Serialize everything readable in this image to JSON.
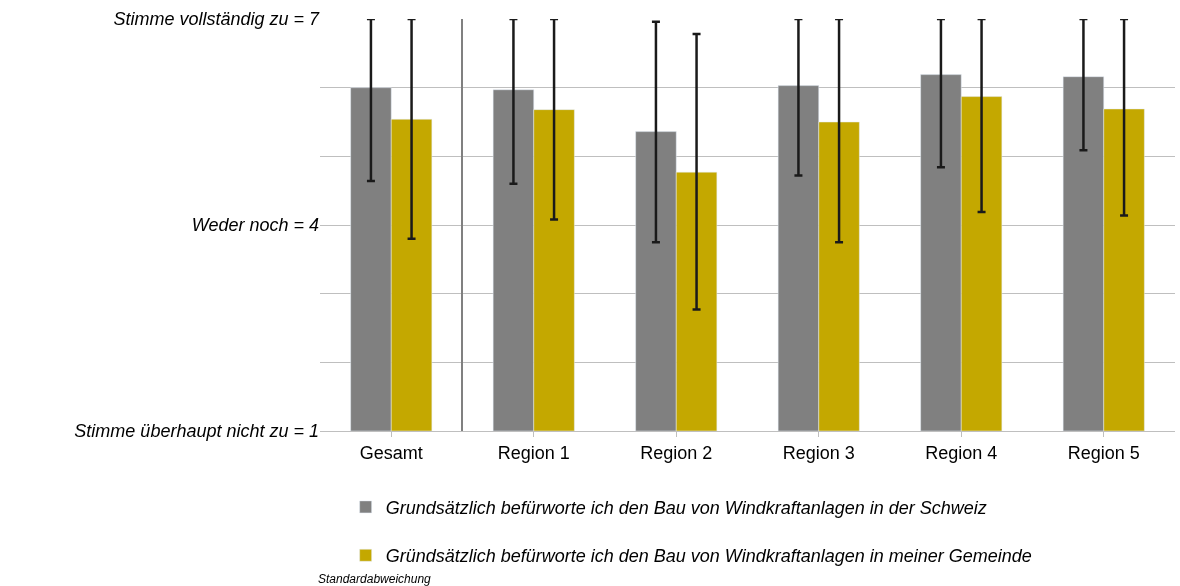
{
  "chart_data": [
    {
      "type": "bar",
      "categories": [
        "Gesamt"
      ],
      "series": [
        {
          "color": "#808080",
          "values": [
            6.0
          ],
          "errors": [
            [
              4.64,
              7
            ]
          ]
        },
        {
          "color": "#c4a800",
          "values": [
            5.54
          ],
          "errors": [
            [
              3.8,
              7
            ]
          ]
        }
      ],
      "ylim": [
        1,
        7
      ],
      "yticks": [
        {
          "value": 1,
          "label": "Stimme überhaupt nicht zu = 1"
        },
        {
          "value": 2,
          "label": null
        },
        {
          "value": 3,
          "label": null
        },
        {
          "value": 4,
          "label": "Weder noch = 4"
        },
        {
          "value": 5,
          "label": null
        },
        {
          "value": 6,
          "label": null
        },
        {
          "value": 7,
          "label": "Stimme vollständig zu = 7"
        }
      ],
      "grid": "y"
    },
    {
      "type": "bar",
      "categories": [
        "Region 1",
        "Region 2",
        "Region 3",
        "Region 4",
        "Region 5"
      ],
      "series": [
        {
          "name": "Grundsätzlich befürworte ich den Bau von Windkraftanlagen in der Schweiz",
          "color": "#808080",
          "values": [
            5.97,
            5.36,
            6.03,
            6.19,
            6.16
          ],
          "errors": [
            [
              4.6,
              7
            ],
            [
              3.75,
              6.96
            ],
            [
              4.72,
              7
            ],
            [
              4.84,
              7
            ],
            [
              5.09,
              7
            ]
          ]
        },
        {
          "name": "Gründsätzlich befürworte ich den Bau von Windkraftanlagen in meiner Gemeinde",
          "color": "#c4a800",
          "values": [
            5.68,
            4.77,
            5.5,
            5.87,
            5.69
          ],
          "errors": [
            [
              4.08,
              7
            ],
            [
              2.77,
              6.78
            ],
            [
              3.75,
              7
            ],
            [
              4.19,
              7
            ],
            [
              4.14,
              7
            ]
          ]
        }
      ],
      "ylim": [
        1,
        7
      ],
      "yticks": [
        {
          "value": 1,
          "label": null
        },
        {
          "value": 2,
          "label": null
        },
        {
          "value": 3,
          "label": null
        },
        {
          "value": 4,
          "label": null
        },
        {
          "value": 5,
          "label": null
        },
        {
          "value": 6,
          "label": null
        },
        {
          "value": 7,
          "label": null
        }
      ],
      "grid": "y",
      "tick_labels": "x",
      "legend": "bottom",
      "annotations": [
        "Standardabweichung"
      ]
    }
  ]
}
